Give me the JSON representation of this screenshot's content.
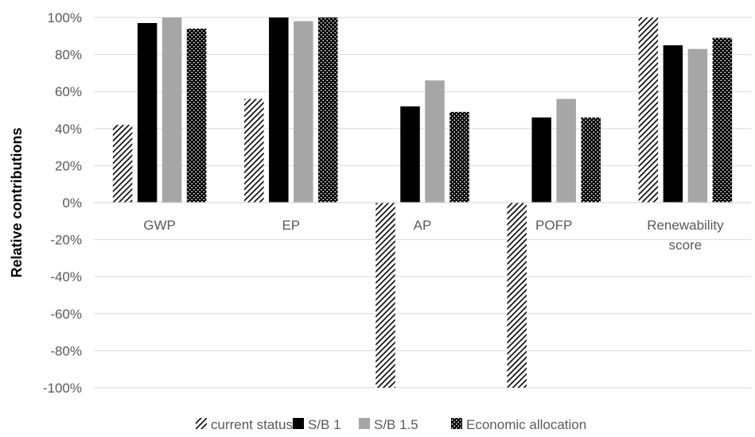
{
  "chart_data": {
    "type": "bar",
    "title": "",
    "xlabel": "",
    "ylabel": "Relative contributions",
    "ylim": [
      -100,
      100
    ],
    "ytick_values": [
      100,
      80,
      60,
      40,
      20,
      0,
      -20,
      -40,
      -60,
      -80,
      -100
    ],
    "ytick_labels": [
      "100%",
      "80%",
      "60%",
      "40%",
      "20%",
      "0%",
      "-20%",
      "-40%",
      "-60%",
      "-80%",
      "-100%"
    ],
    "categories": [
      "GWP",
      "EP",
      "AP",
      "POFP",
      "Renewability score"
    ],
    "category_lines": [
      [
        "GWP"
      ],
      [
        "EP"
      ],
      [
        "AP"
      ],
      [
        "POFP"
      ],
      [
        "Renewability",
        "score"
      ]
    ],
    "series": [
      {
        "name": "current status",
        "pattern": "diagonal-hatch",
        "color": "#000000",
        "values": [
          42,
          56,
          -100,
          -100,
          100
        ]
      },
      {
        "name": "S/B 1",
        "pattern": "solid",
        "color": "#000000",
        "values": [
          97,
          100,
          52,
          46,
          85
        ]
      },
      {
        "name": "S/B 1.5",
        "pattern": "solid",
        "color": "#a6a6a6",
        "values": [
          100,
          98,
          66,
          56,
          83
        ]
      },
      {
        "name": "Economic allocation",
        "pattern": "dots",
        "color": "#000000",
        "values": [
          94,
          100,
          49,
          46,
          89
        ]
      }
    ],
    "grid": true,
    "legend_position": "bottom"
  }
}
